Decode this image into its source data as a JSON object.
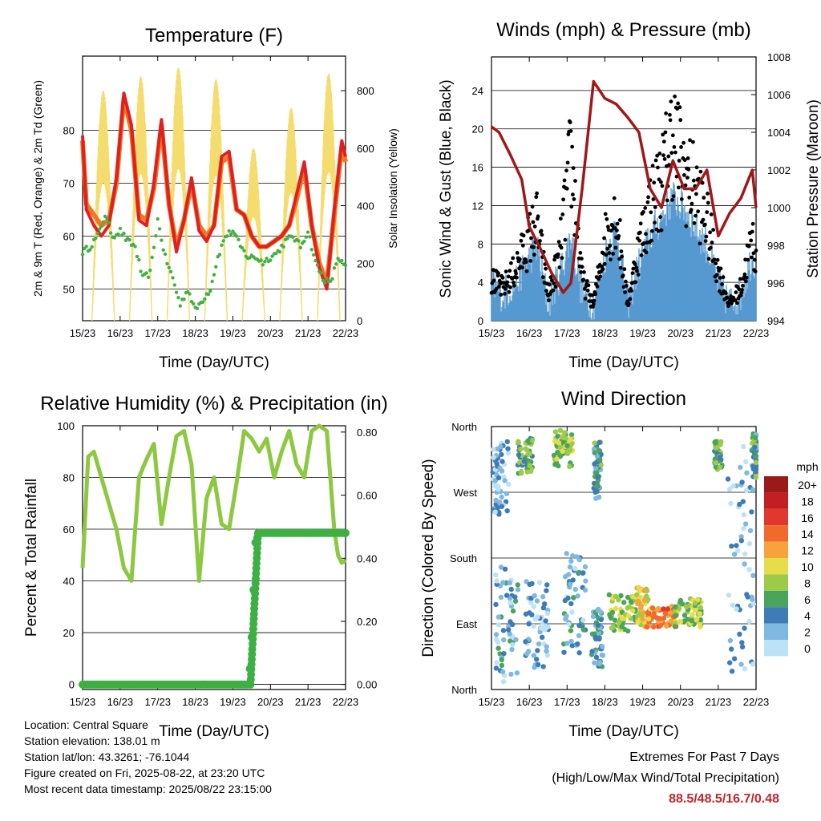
{
  "chart_data": [
    {
      "type": "line",
      "title": "Temperature (F)",
      "xlabel": "Time (Day/UTC)",
      "ylabel": "2m & 9m T (Red, Orange) & 2m Td (Green)",
      "y2label": "Solar Insolation (Yellow)",
      "x_ticks": [
        "15/23",
        "16/23",
        "17/23",
        "18/23",
        "19/23",
        "20/23",
        "21/23",
        "22/23"
      ],
      "ylim": [
        44,
        94
      ],
      "yticks": [
        50,
        60,
        70,
        80
      ],
      "y2lim": [
        0,
        920
      ],
      "y2ticks": [
        0,
        200,
        400,
        600,
        800
      ],
      "grid": true,
      "series": [
        {
          "name": "2m T",
          "color": "#e02020",
          "kind": "line",
          "x": [
            0,
            0.1,
            0.3,
            0.5,
            0.7,
            0.9,
            1.1,
            1.3,
            1.5,
            1.7,
            1.9,
            2.1,
            2.3,
            2.5,
            2.7,
            2.9,
            3.1,
            3.3,
            3.5,
            3.7,
            3.9,
            4.1,
            4.3,
            4.5,
            4.7,
            4.9,
            5.1,
            5.3,
            5.5,
            5.7,
            5.9,
            6.1,
            6.3,
            6.5,
            6.7,
            6.9,
            7
          ],
          "y": [
            79,
            65,
            62,
            60,
            62,
            71,
            87,
            81,
            63,
            62,
            70,
            82,
            66,
            57,
            63,
            71,
            61,
            59,
            62,
            75,
            76,
            65,
            64,
            60,
            58,
            58,
            59,
            60,
            62,
            68,
            74,
            62,
            54,
            50,
            65,
            78,
            75
          ]
        },
        {
          "name": "9m T",
          "color": "#f07820",
          "kind": "line",
          "x": [
            0,
            0.1,
            0.3,
            0.5,
            0.7,
            0.9,
            1.1,
            1.3,
            1.5,
            1.7,
            1.9,
            2.1,
            2.3,
            2.5,
            2.7,
            2.9,
            3.1,
            3.3,
            3.5,
            3.7,
            3.9,
            4.1,
            4.3,
            4.5,
            4.7,
            4.9,
            5.1,
            5.3,
            5.5,
            5.7,
            5.9,
            6.1,
            6.3,
            6.5,
            6.7,
            6.9,
            7
          ],
          "y": [
            78,
            66,
            64,
            62,
            63,
            70,
            86,
            80,
            64,
            63,
            69,
            81,
            66,
            58,
            63,
            70,
            62,
            60,
            62,
            74,
            75,
            65,
            64,
            60,
            58,
            58,
            59,
            60,
            62,
            67,
            73,
            62,
            55,
            51,
            64,
            77,
            74
          ]
        },
        {
          "name": "2m Td",
          "color": "#44b044",
          "kind": "dots",
          "x": [
            0,
            0.2,
            0.4,
            0.6,
            0.8,
            1.0,
            1.2,
            1.4,
            1.6,
            1.8,
            2.0,
            2.2,
            2.4,
            2.6,
            2.8,
            3.0,
            3.2,
            3.4,
            3.6,
            3.8,
            4.0,
            4.2,
            4.4,
            4.6,
            4.8,
            5.0,
            5.2,
            5.4,
            5.6,
            5.8,
            6.0,
            6.2,
            6.4,
            6.6,
            6.8,
            7
          ],
          "y": [
            57,
            58,
            60,
            64,
            60,
            61,
            59,
            58,
            52,
            53,
            63,
            56,
            52,
            47,
            50,
            46,
            48,
            50,
            56,
            60,
            61,
            58,
            56,
            56,
            55,
            56,
            57,
            59,
            60,
            58,
            61,
            55,
            52,
            51,
            56,
            54
          ]
        },
        {
          "name": "Solar Insolation",
          "color": "#f5dc6e",
          "axis": "y2",
          "kind": "diurnal",
          "peaks": [
            0.55,
            1.55,
            2.55,
            3.55,
            4.55,
            5.55,
            6.55
          ],
          "peak_values": [
            800,
            850,
            880,
            840,
            600,
            740,
            860
          ]
        }
      ]
    },
    {
      "type": "scatter",
      "title": "Winds (mph) & Pressure (mb)",
      "xlabel": "Time (Day/UTC)",
      "ylabel": "Sonic Wind & Gust (Blue, Black)",
      "y2label": "Station Pressure (Maroon)",
      "x_ticks": [
        "15/23",
        "16/23",
        "17/23",
        "18/23",
        "19/23",
        "20/23",
        "21/23",
        "22/23"
      ],
      "ylim": [
        0,
        27.5
      ],
      "yticks": [
        0,
        4,
        8,
        12,
        16,
        20,
        24
      ],
      "y2lim": [
        994,
        1008
      ],
      "y2ticks": [
        994,
        996,
        998,
        1000,
        1002,
        1004,
        1006,
        1008
      ],
      "grid": true,
      "series": [
        {
          "name": "Sonic Wind",
          "color": "#5599d0",
          "kind": "band",
          "x": [
            0,
            0.3,
            0.6,
            0.9,
            1.2,
            1.5,
            1.8,
            2.1,
            2.4,
            2.7,
            3.0,
            3.3,
            3.6,
            3.9,
            4.2,
            4.5,
            4.8,
            5.1,
            5.4,
            5.7,
            6.0,
            6.3,
            6.6,
            6.9,
            7
          ],
          "y": [
            3,
            2,
            3,
            5,
            7,
            1,
            4,
            8,
            2,
            1,
            6,
            9,
            1,
            5,
            8,
            10,
            12,
            11,
            9,
            7,
            3,
            1,
            2,
            6,
            5
          ]
        },
        {
          "name": "Gust",
          "color": "#000000",
          "kind": "dots",
          "x": [
            0,
            0.3,
            0.6,
            0.9,
            1.2,
            1.5,
            1.8,
            2.1,
            2.4,
            2.7,
            3.0,
            3.3,
            3.6,
            3.9,
            4.2,
            4.5,
            4.8,
            5.1,
            5.4,
            5.7,
            6.0,
            6.3,
            6.6,
            6.9,
            7
          ],
          "y": [
            5,
            4,
            6,
            9,
            12,
            3,
            8,
            20,
            5,
            2,
            10,
            13,
            2,
            9,
            14,
            17,
            23,
            18,
            16,
            12,
            6,
            2,
            4,
            10,
            8
          ]
        },
        {
          "name": "Station Pressure",
          "color": "#a01818",
          "axis": "y2",
          "kind": "line",
          "x": [
            0,
            0.2,
            0.5,
            0.8,
            1.0,
            1.3,
            1.6,
            1.9,
            2.1,
            2.4,
            2.7,
            3.0,
            3.3,
            3.6,
            3.9,
            4.2,
            4.5,
            4.8,
            5.1,
            5.4,
            5.7,
            6.0,
            6.3,
            6.6,
            6.9,
            7
          ],
          "y": [
            1004.3,
            1004,
            1002.8,
            1001.5,
            999,
            997.8,
            996.5,
            995.5,
            996,
            1001,
            1006.7,
            1005.8,
            1005.5,
            1004.8,
            1004,
            1001,
            1000,
            1002.5,
            1001,
            1001,
            1002,
            998.5,
            999.7,
            1000.5,
            1002,
            1000
          ]
        }
      ]
    },
    {
      "type": "line",
      "title": "Relative Humidity (%) & Precipitation (in)",
      "xlabel": "Time (Day/UTC)",
      "ylabel": "Percent & Total Rainfall",
      "x_ticks": [
        "15/23",
        "16/23",
        "17/23",
        "18/23",
        "19/23",
        "20/23",
        "21/23",
        "22/23"
      ],
      "ylim": [
        -2,
        100
      ],
      "yticks": [
        0,
        20,
        40,
        60,
        80,
        100
      ],
      "y2lim": [
        -0.016,
        0.82
      ],
      "y2ticks": [
        "0.00",
        "0.20",
        "0.40",
        "0.60",
        "0.80"
      ],
      "grid": true,
      "series": [
        {
          "name": "Relative Humidity",
          "color": "#8cc840",
          "kind": "line",
          "x": [
            0,
            0.15,
            0.3,
            0.5,
            0.7,
            0.9,
            1.1,
            1.3,
            1.5,
            1.7,
            1.9,
            2.1,
            2.3,
            2.5,
            2.7,
            2.9,
            3.1,
            3.3,
            3.5,
            3.7,
            3.9,
            4.1,
            4.3,
            4.5,
            4.7,
            4.9,
            5.1,
            5.3,
            5.5,
            5.7,
            5.9,
            6.1,
            6.3,
            6.5,
            6.7,
            6.8,
            6.9,
            7
          ],
          "y": [
            45,
            88,
            90,
            80,
            70,
            60,
            45,
            40,
            80,
            87,
            93,
            62,
            80,
            96,
            98,
            85,
            40,
            72,
            80,
            62,
            60,
            78,
            98,
            95,
            90,
            95,
            80,
            90,
            98,
            85,
            80,
            98,
            100,
            98,
            60,
            50,
            47,
            48
          ]
        },
        {
          "name": "Total Precipitation",
          "color": "#3cb043",
          "axis": "y2",
          "kind": "step",
          "x": [
            0,
            4.4,
            4.45,
            4.5,
            4.55,
            4.6,
            4.7,
            7
          ],
          "y": [
            0,
            0,
            0.05,
            0.15,
            0.3,
            0.45,
            0.48,
            0.48
          ]
        }
      ]
    },
    {
      "type": "scatter",
      "title": "Wind Direction",
      "xlabel": "Time (Day/UTC)",
      "ylabel": "Direction (Colored By Speed)",
      "x_ticks": [
        "15/23",
        "16/23",
        "17/23",
        "18/23",
        "19/23",
        "20/23",
        "21/23",
        "22/23"
      ],
      "yticks": [
        "North",
        "East",
        "South",
        "West",
        "North"
      ],
      "ylim": [
        0,
        360
      ],
      "grid": true,
      "legend_title": "mph",
      "legend": [
        {
          "label": "20+",
          "color": "#9a1a1a"
        },
        {
          "label": "18",
          "color": "#c21f24"
        },
        {
          "label": "16",
          "color": "#e0382c"
        },
        {
          "label": "14",
          "color": "#f06a2e"
        },
        {
          "label": "12",
          "color": "#f6a33c"
        },
        {
          "label": "10",
          "color": "#e7dc4a"
        },
        {
          "label": "8",
          "color": "#9ccb4a"
        },
        {
          "label": "6",
          "color": "#4aa55c"
        },
        {
          "label": "4",
          "color": "#3f7bb7"
        },
        {
          "label": "2",
          "color": "#7fb8e0"
        },
        {
          "label": "0",
          "color": "#bee2f5"
        }
      ],
      "clusters": [
        {
          "x": 0.2,
          "y": 290,
          "spread": [
            0.25,
            50
          ],
          "speed": 2
        },
        {
          "x": 0.9,
          "y": 320,
          "spread": [
            0.2,
            25
          ],
          "speed": 6
        },
        {
          "x": 0.4,
          "y": 90,
          "spread": [
            0.3,
            80
          ],
          "speed": 3
        },
        {
          "x": 1.2,
          "y": 90,
          "spread": [
            0.3,
            60
          ],
          "speed": 2
        },
        {
          "x": 1.9,
          "y": 330,
          "spread": [
            0.25,
            25
          ],
          "speed": 8
        },
        {
          "x": 2.2,
          "y": 120,
          "spread": [
            0.3,
            70
          ],
          "speed": 3
        },
        {
          "x": 2.8,
          "y": 300,
          "spread": [
            0.1,
            40
          ],
          "speed": 5
        },
        {
          "x": 2.8,
          "y": 70,
          "spread": [
            0.15,
            40
          ],
          "speed": 4
        },
        {
          "x": 3.5,
          "y": 105,
          "spread": [
            0.4,
            25
          ],
          "speed": 8
        },
        {
          "x": 4.0,
          "y": 110,
          "spread": [
            0.15,
            30
          ],
          "speed": 10
        },
        {
          "x": 4.5,
          "y": 100,
          "spread": [
            0.4,
            15
          ],
          "speed": 13
        },
        {
          "x": 5.2,
          "y": 105,
          "spread": [
            0.35,
            20
          ],
          "speed": 8
        },
        {
          "x": 6.0,
          "y": 320,
          "spread": [
            0.1,
            20
          ],
          "speed": 6
        },
        {
          "x": 6.6,
          "y": 180,
          "spread": [
            0.35,
            160
          ],
          "speed": 2
        },
        {
          "x": 7.0,
          "y": 320,
          "spread": [
            0.1,
            30
          ],
          "speed": 5
        }
      ]
    }
  ],
  "info": {
    "location": "Location: Central Square",
    "elevation": "Station elevation: 138.01 m",
    "latlon": "Station lat/lon: 43.3261; -76.1044",
    "created": "Figure created on Fri, 2025-08-22, at 23:20 UTC",
    "recent": "Most recent data timestamp: 2025/08/22 23:15:00"
  },
  "extremes": {
    "title": "Extremes For Past 7 Days",
    "subtitle": "(High/Low/Max Wind/Total Precipitation)",
    "values": "88.5/48.5/16.7/0.48"
  }
}
